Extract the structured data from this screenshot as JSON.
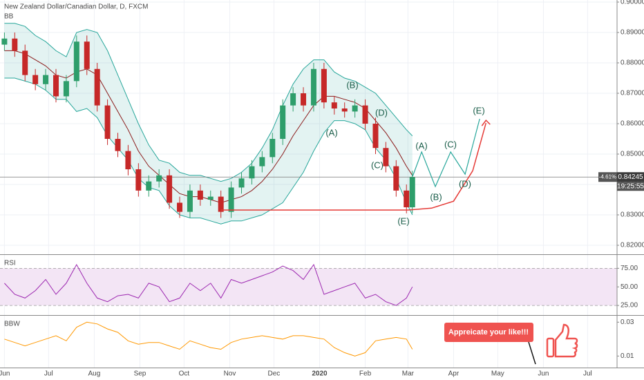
{
  "chart_data": [
    {
      "type": "candlestick",
      "title": "New Zealand Dollar/Canadian Dollar, D, FXCM",
      "indicator_label": "BB",
      "x": [
        0,
        7,
        14,
        21,
        28,
        35,
        42,
        49,
        56,
        63,
        70,
        77,
        84,
        91,
        98,
        105,
        112,
        119,
        126,
        133,
        140,
        147,
        154,
        161,
        168,
        175,
        182,
        189,
        196,
        203,
        210,
        217,
        224,
        231,
        238,
        245,
        252,
        259,
        266,
        273,
        277
      ],
      "open": [
        0.886,
        0.888,
        0.884,
        0.876,
        0.873,
        0.876,
        0.869,
        0.874,
        0.887,
        0.878,
        0.866,
        0.855,
        0.851,
        0.845,
        0.838,
        0.841,
        0.843,
        0.834,
        0.831,
        0.838,
        0.835,
        0.836,
        0.831,
        0.839,
        0.842,
        0.846,
        0.849,
        0.855,
        0.866,
        0.87,
        0.866,
        0.878,
        0.867,
        0.865,
        0.864,
        0.866,
        0.86,
        0.852,
        0.846,
        0.838,
        0.8325
      ],
      "high": [
        0.89,
        0.89,
        0.886,
        0.878,
        0.878,
        0.878,
        0.876,
        0.889,
        0.889,
        0.88,
        0.868,
        0.857,
        0.853,
        0.847,
        0.843,
        0.845,
        0.845,
        0.836,
        0.84,
        0.84,
        0.838,
        0.838,
        0.841,
        0.844,
        0.848,
        0.851,
        0.857,
        0.868,
        0.872,
        0.872,
        0.88,
        0.88,
        0.869,
        0.867,
        0.868,
        0.868,
        0.862,
        0.854,
        0.848,
        0.84,
        0.8445
      ],
      "low": [
        0.884,
        0.882,
        0.874,
        0.871,
        0.871,
        0.867,
        0.867,
        0.872,
        0.876,
        0.864,
        0.853,
        0.849,
        0.843,
        0.836,
        0.836,
        0.839,
        0.832,
        0.829,
        0.829,
        0.833,
        0.833,
        0.829,
        0.829,
        0.837,
        0.84,
        0.844,
        0.847,
        0.853,
        0.864,
        0.864,
        0.864,
        0.865,
        0.863,
        0.862,
        0.862,
        0.858,
        0.85,
        0.844,
        0.836,
        0.8305,
        0.8305
      ],
      "close": [
        0.888,
        0.884,
        0.876,
        0.873,
        0.876,
        0.869,
        0.874,
        0.887,
        0.878,
        0.866,
        0.855,
        0.851,
        0.845,
        0.838,
        0.841,
        0.843,
        0.834,
        0.831,
        0.838,
        0.835,
        0.836,
        0.831,
        0.839,
        0.842,
        0.846,
        0.849,
        0.855,
        0.866,
        0.87,
        0.866,
        0.878,
        0.867,
        0.865,
        0.864,
        0.866,
        0.86,
        0.852,
        0.846,
        0.838,
        0.8325,
        0.84245
      ],
      "upper": [
        0.893,
        0.893,
        0.892,
        0.889,
        0.887,
        0.884,
        0.882,
        0.89,
        0.891,
        0.89,
        0.884,
        0.876,
        0.868,
        0.86,
        0.853,
        0.848,
        0.847,
        0.844,
        0.843,
        0.843,
        0.842,
        0.841,
        0.842,
        0.844,
        0.847,
        0.852,
        0.858,
        0.866,
        0.873,
        0.878,
        0.881,
        0.881,
        0.877,
        0.875,
        0.874,
        0.872,
        0.87,
        0.866,
        0.862,
        0.858,
        0.856
      ],
      "basis": [
        0.884,
        0.884,
        0.883,
        0.881,
        0.879,
        0.876,
        0.875,
        0.877,
        0.878,
        0.876,
        0.87,
        0.864,
        0.858,
        0.851,
        0.846,
        0.843,
        0.84,
        0.837,
        0.836,
        0.836,
        0.835,
        0.834,
        0.835,
        0.836,
        0.838,
        0.841,
        0.845,
        0.85,
        0.856,
        0.861,
        0.866,
        0.869,
        0.869,
        0.868,
        0.867,
        0.865,
        0.861,
        0.857,
        0.852,
        0.846,
        0.843
      ],
      "lower": [
        0.875,
        0.875,
        0.874,
        0.873,
        0.871,
        0.868,
        0.868,
        0.864,
        0.865,
        0.862,
        0.856,
        0.852,
        0.848,
        0.842,
        0.839,
        0.838,
        0.833,
        0.83,
        0.829,
        0.829,
        0.828,
        0.827,
        0.828,
        0.828,
        0.829,
        0.83,
        0.832,
        0.834,
        0.839,
        0.844,
        0.851,
        0.857,
        0.861,
        0.861,
        0.86,
        0.858,
        0.852,
        0.848,
        0.842,
        0.834,
        0.83
      ],
      "up_color": "#2e9e6b",
      "down_color": "#c62828",
      "band_color": "#26a69a",
      "basis_color": "#8b1a1a",
      "xlim": [
        -3,
        416
      ],
      "ylim": [
        0.81705,
        0.90068
      ],
      "yticks": [
        {
          "value": 0.82,
          "label": "0.82000"
        },
        {
          "value": 0.83,
          "label": "0.83000"
        },
        {
          "value": 0.84,
          "label": "0.84000"
        },
        {
          "value": 0.85,
          "label": "0.85000"
        },
        {
          "value": 0.86,
          "label": "0.86000"
        },
        {
          "value": 0.87,
          "label": "0.87000"
        },
        {
          "value": 0.88,
          "label": "0.88000"
        },
        {
          "value": 0.89,
          "label": "0.89000"
        },
        {
          "value": 0.9,
          "label": "0.90000"
        }
      ],
      "change_label": "-4.61%",
      "countdown": "19:25:55",
      "projection": {
        "x": [
          277.2,
          283.3,
          292.6,
          303,
          312.8,
          322.7
        ],
        "values": [
          0.8427,
          0.8507,
          0.8393,
          0.8507,
          0.8434,
          0.8616
        ],
        "color": "#26a69a"
      },
      "support": {
        "x": [
          147,
          274,
          290,
          305,
          318,
          327
        ],
        "values": [
          0.8316,
          0.8316,
          0.8322,
          0.8345,
          0.8445,
          0.8602
        ],
        "color": "#e53935"
      },
      "annotations": [
        "(A)",
        "(B)",
        "(C)",
        "(D)",
        "(E)",
        "(A)",
        "(B)",
        "(C)",
        "(D)",
        "(E)"
      ]
    },
    {
      "type": "line",
      "title": "RSI",
      "x": [
        0,
        7,
        14,
        21,
        28,
        35,
        42,
        49,
        56,
        63,
        70,
        77,
        84,
        91,
        98,
        105,
        112,
        119,
        126,
        133,
        140,
        147,
        154,
        161,
        168,
        175,
        182,
        189,
        196,
        203,
        210,
        217,
        224,
        231,
        238,
        245,
        252,
        259,
        266,
        273,
        277
      ],
      "values": [
        55,
        40,
        35,
        45,
        60,
        40,
        55,
        80,
        55,
        35,
        30,
        38,
        40,
        35,
        55,
        50,
        30,
        35,
        55,
        45,
        55,
        35,
        60,
        55,
        60,
        65,
        70,
        78,
        72,
        60,
        80,
        40,
        45,
        50,
        55,
        35,
        40,
        30,
        25,
        35,
        50
      ],
      "color": "#9c27b0",
      "band": [
        25,
        75
      ],
      "band_color": "#f3e5f5",
      "xlim": [
        -3,
        416
      ],
      "ylim": [
        13,
        93
      ],
      "yticks": [
        {
          "value": 25,
          "label": "25.00"
        },
        {
          "value": 50,
          "label": "50.00"
        },
        {
          "value": 75,
          "label": "75.00"
        }
      ]
    },
    {
      "type": "line",
      "title": "BBW",
      "x": [
        0,
        7,
        14,
        21,
        28,
        35,
        42,
        49,
        56,
        63,
        70,
        77,
        84,
        91,
        98,
        105,
        112,
        119,
        126,
        133,
        140,
        147,
        154,
        161,
        168,
        175,
        182,
        189,
        196,
        203,
        210,
        217,
        224,
        231,
        238,
        245,
        252,
        259,
        266,
        273,
        277
      ],
      "values": [
        0.02,
        0.018,
        0.016,
        0.018,
        0.02,
        0.022,
        0.019,
        0.027,
        0.03,
        0.029,
        0.026,
        0.024,
        0.019,
        0.017,
        0.018,
        0.018,
        0.016,
        0.014,
        0.019,
        0.017,
        0.015,
        0.014,
        0.018,
        0.02,
        0.021,
        0.022,
        0.021,
        0.02,
        0.022,
        0.022,
        0.021,
        0.02,
        0.015,
        0.012,
        0.01,
        0.012,
        0.019,
        0.02,
        0.021,
        0.02,
        0.014
      ],
      "color": "#ff9800",
      "xlim": [
        -3,
        416
      ],
      "ylim": [
        0.0032,
        0.0338
      ],
      "yticks": [
        0.01,
        0.03
      ],
      "xticks": [
        {
          "value": 0,
          "label": "Jun"
        },
        {
          "value": 30,
          "label": "Jul"
        },
        {
          "value": 61,
          "label": "Aug"
        },
        {
          "value": 92,
          "label": "Sep"
        },
        {
          "value": 122,
          "label": "Oct"
        },
        {
          "value": 153,
          "label": "Nov"
        },
        {
          "value": 183,
          "label": "Dec"
        },
        {
          "value": 214,
          "label": "2020"
        },
        {
          "value": 245,
          "label": "Feb"
        },
        {
          "value": 274,
          "label": "Mar"
        },
        {
          "value": 305,
          "label": "Apr"
        },
        {
          "value": 335,
          "label": "May"
        },
        {
          "value": 366,
          "label": "Jun"
        },
        {
          "value": 396,
          "label": "Jul"
        }
      ]
    }
  ],
  "callout": "Appreicate your like!!!"
}
